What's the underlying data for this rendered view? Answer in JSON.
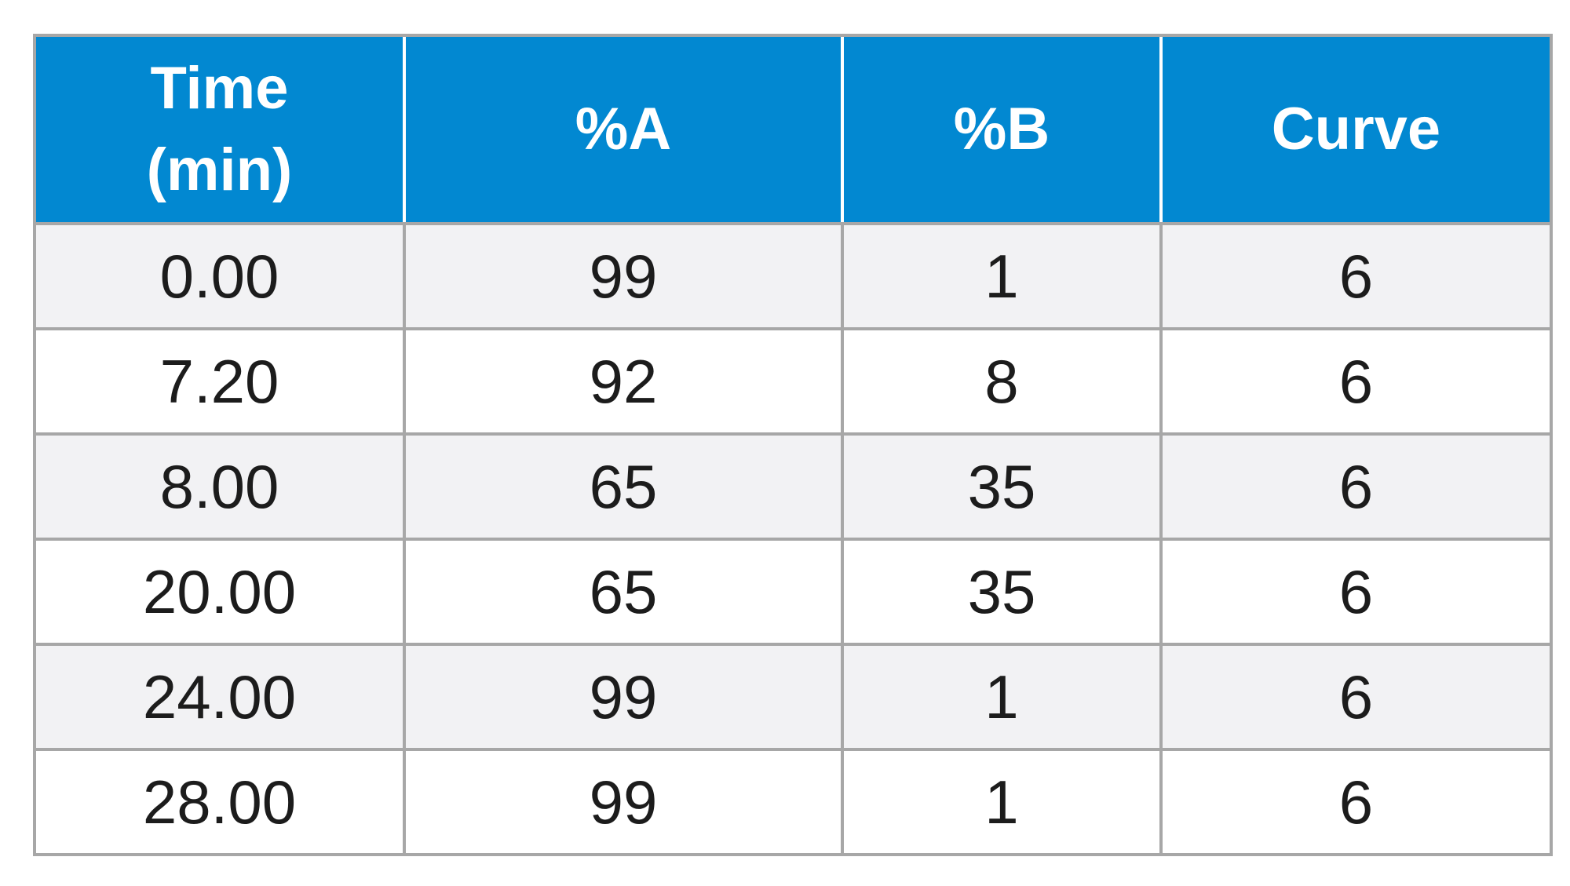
{
  "table": {
    "header": {
      "time_line1": "Time",
      "time_line2": "(min)",
      "percent_a": "%A",
      "percent_b": "%B",
      "curve": "Curve"
    },
    "rows": [
      {
        "time": "0.00",
        "a": "99",
        "b": "1",
        "curve": "6"
      },
      {
        "time": "7.20",
        "a": "92",
        "b": "8",
        "curve": "6"
      },
      {
        "time": "8.00",
        "a": "65",
        "b": "35",
        "curve": "6"
      },
      {
        "time": "20.00",
        "a": "65",
        "b": "35",
        "curve": "6"
      },
      {
        "time": "24.00",
        "a": "99",
        "b": "1",
        "curve": "6"
      },
      {
        "time": "28.00",
        "a": "99",
        "b": "1",
        "curve": "6"
      }
    ]
  },
  "colors": {
    "header_bg": "#0288d1",
    "header_text": "#ffffff",
    "row_shade": "#f2f2f4",
    "row_plain": "#ffffff",
    "grid_line": "#a7a7a7",
    "cell_text": "#1c1c1c"
  }
}
